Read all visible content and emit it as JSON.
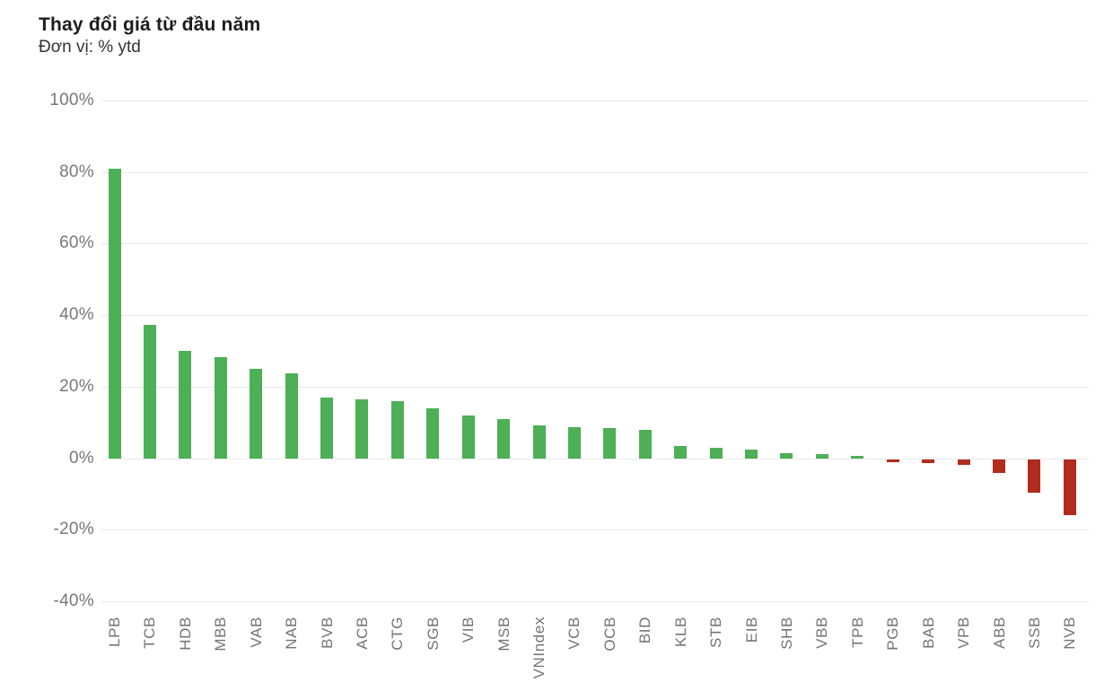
{
  "header": {
    "title": "Thay đổi giá từ đầu năm",
    "subtitle": "Đơn vị: % ytd"
  },
  "chart_data": {
    "type": "bar",
    "title": "Thay đổi giá từ đầu năm",
    "subtitle": "Đơn vị: % ytd",
    "unit": "% ytd",
    "categories": [
      "LPB",
      "TCB",
      "HDB",
      "MBB",
      "VAB",
      "NAB",
      "BVB",
      "ACB",
      "CTG",
      "SGB",
      "VIB",
      "MSB",
      "VNIndex",
      "VCB",
      "OCB",
      "BID",
      "KLB",
      "STB",
      "EIB",
      "SHB",
      "VBB",
      "TPB",
      "PGB",
      "BAB",
      "VPB",
      "ABB",
      "SSB",
      "NVB"
    ],
    "values": [
      81,
      37.3,
      30,
      28.3,
      25,
      23.7,
      17,
      16.5,
      16,
      14,
      12,
      11,
      9.2,
      8.7,
      8.5,
      8,
      3.4,
      2.8,
      2.3,
      1.4,
      1.2,
      0.7,
      -0.9,
      -1.1,
      -1.7,
      -3.9,
      -9.3,
      -15.6
    ],
    "yticks": [
      100,
      80,
      60,
      40,
      20,
      0,
      -20,
      -40
    ],
    "ytick_suffix": "%",
    "ylim": [
      -40,
      100
    ],
    "grid": true,
    "legend": "none",
    "xlabel": "",
    "ylabel": "",
    "colors": {
      "positive": "#4daf56",
      "negative": "#b22b1d",
      "gridline": "#e9e9e9",
      "ytick_label": "#77787a",
      "xtick_label": "#737476"
    }
  }
}
